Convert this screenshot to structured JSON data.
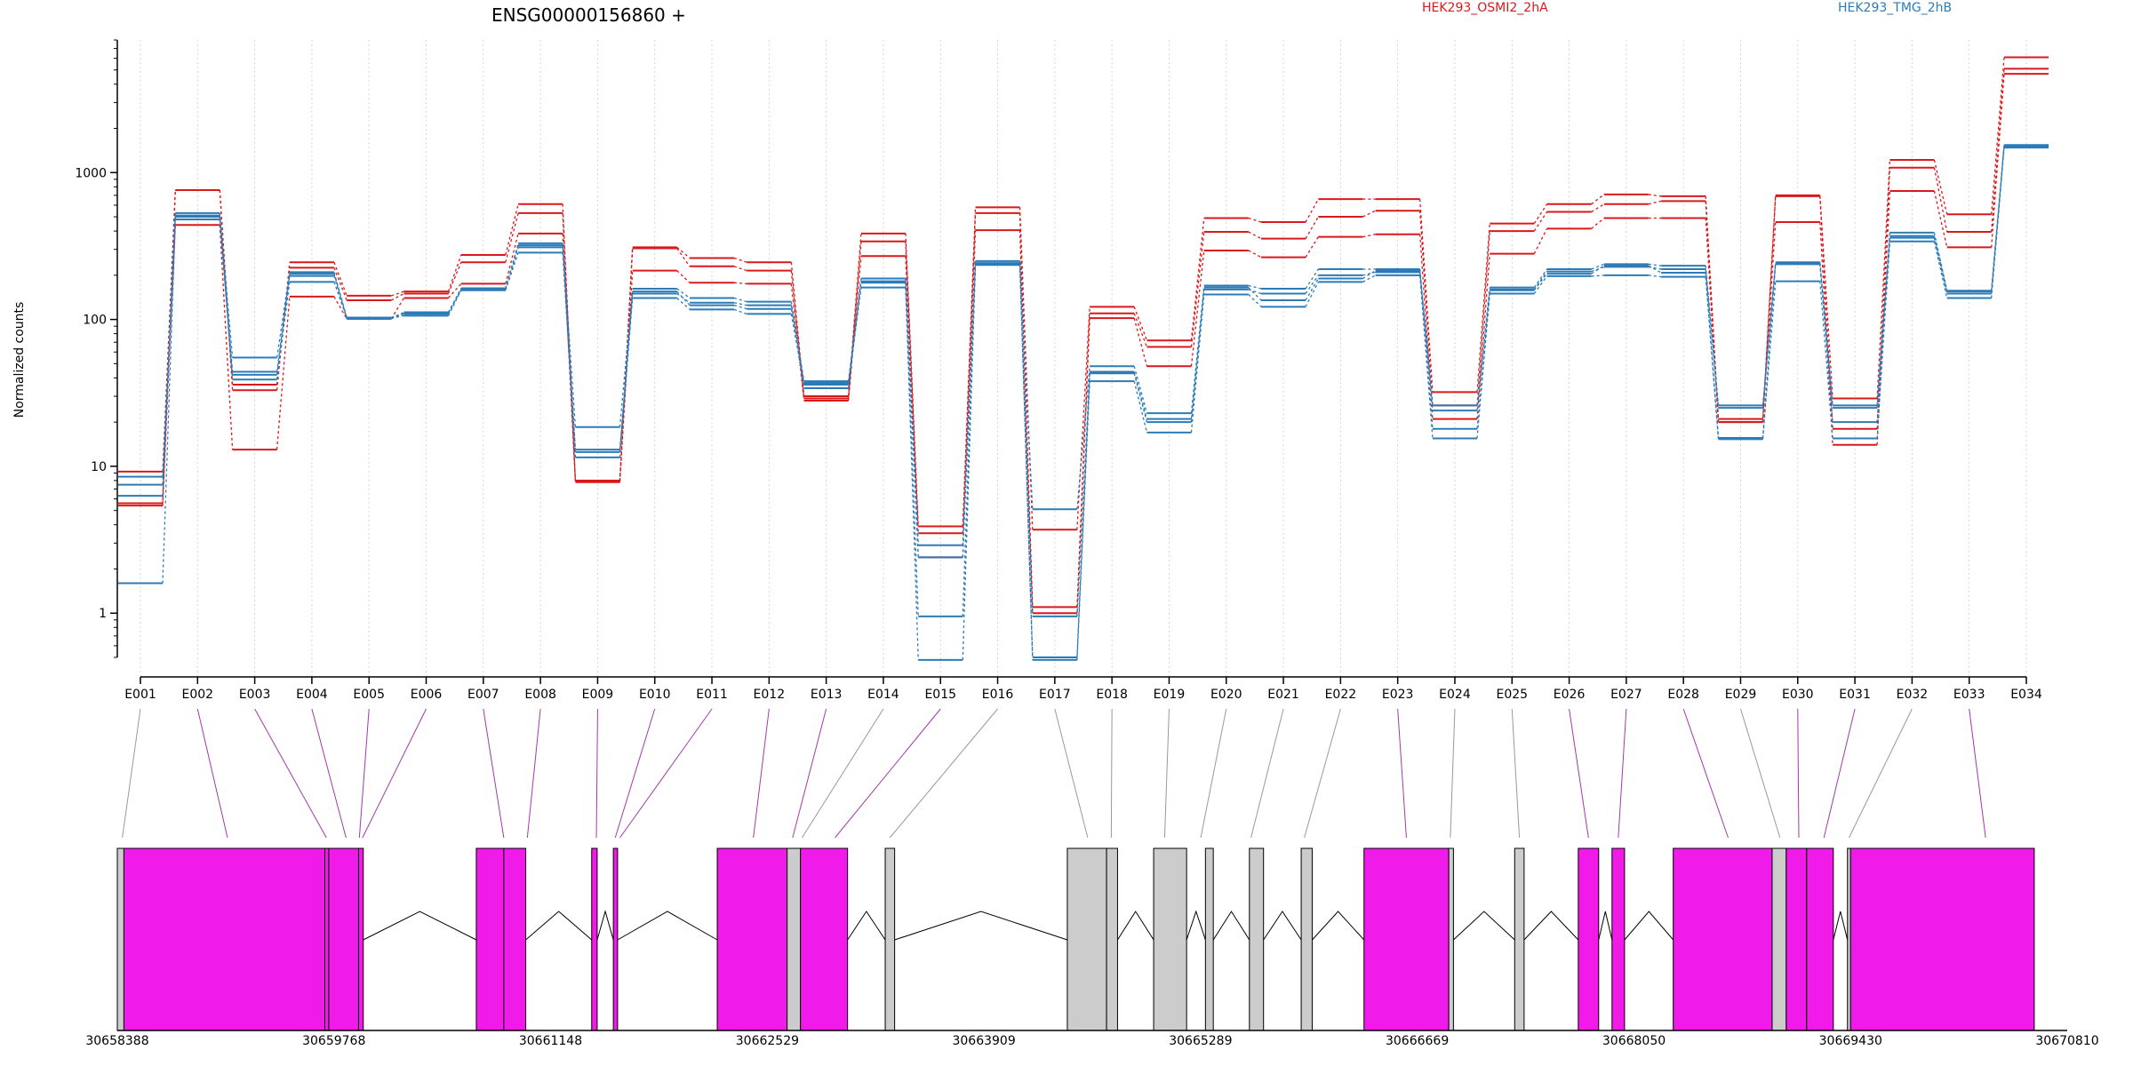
{
  "chart_data": {
    "type": "line",
    "title": "ENSG00000156860 +",
    "ylabel": "Normalized counts",
    "y_scale": "log",
    "ylim": [
      0.5,
      8000
    ],
    "y_ticks": [
      1,
      10,
      100,
      1000
    ],
    "y_tick_labels": [
      "1",
      "10",
      "100",
      "1000"
    ],
    "grid": "vertical dotted",
    "categories": [
      "E001",
      "E002",
      "E003",
      "E004",
      "E005",
      "E006",
      "E007",
      "E008",
      "E009",
      "E010",
      "E011",
      "E012",
      "E013",
      "E014",
      "E015",
      "E016",
      "E017",
      "E018",
      "E019",
      "E020",
      "E021",
      "E022",
      "E023",
      "E024",
      "E025",
      "E026",
      "E027",
      "E028",
      "E029",
      "E030",
      "E031",
      "E032",
      "E033",
      "E034"
    ],
    "legend": [
      {
        "label": "HEK293_OSMI2_2hA",
        "color": "#d7191c"
      },
      {
        "label": "HEK293_TMG_2hB",
        "color": "#2c7bb6"
      }
    ],
    "series": [
      {
        "group": 0,
        "values": [
          9.2,
          760,
          33,
          245,
          145,
          155,
          275,
          610,
          7.9,
          310,
          262,
          245,
          30,
          385,
          3.9,
          580,
          3.7,
          122,
          72,
          490,
          460,
          660,
          660,
          32,
          450,
          610,
          710,
          690,
          21,
          700,
          29,
          1220,
          520,
          6100
        ]
      },
      {
        "group": 0,
        "values": [
          5.6,
          760,
          36,
          225,
          135,
          150,
          245,
          530,
          8.0,
          305,
          230,
          215,
          29,
          340,
          3.5,
          530,
          1.1,
          110,
          65,
          395,
          355,
          500,
          550,
          26,
          400,
          540,
          610,
          640,
          20,
          690,
          18,
          1080,
          395,
          5100
        ]
      },
      {
        "group": 0,
        "values": [
          5.4,
          440,
          13,
          143,
          101,
          140,
          175,
          385,
          7.8,
          215,
          178,
          175,
          28,
          270,
          2.4,
          405,
          1.0,
          102,
          48,
          295,
          265,
          365,
          380,
          21,
          280,
          415,
          490,
          490,
          20,
          460,
          14,
          750,
          310,
          4700
        ]
      },
      {
        "group": 1,
        "values": [
          8.5,
          530,
          55,
          210,
          102,
          112,
          162,
          330,
          18.5,
          162,
          140,
          132,
          38,
          190,
          2.9,
          250,
          5.1,
          48,
          23,
          170,
          162,
          220,
          220,
          26,
          165,
          220,
          238,
          232,
          26,
          245,
          26,
          390,
          157,
          1540
        ]
      },
      {
        "group": 1,
        "values": [
          6.3,
          500,
          42,
          198,
          101,
          109,
          159,
          310,
          13,
          150,
          130,
          125,
          37,
          178,
          2.4,
          238,
          0.95,
          43,
          20,
          160,
          150,
          200,
          210,
          24,
          160,
          212,
          228,
          220,
          25,
          240,
          20,
          370,
          155,
          1520
        ]
      },
      {
        "group": 1,
        "values": [
          1.6,
          480,
          39,
          180,
          102,
          106,
          158,
          285,
          11.5,
          140,
          117,
          109,
          36,
          165,
          0.95,
          235,
          0.48,
          38,
          17,
          148,
          122,
          180,
          200,
          15.5,
          150,
          197,
          200,
          195,
          15.3,
          182,
          15.5,
          340,
          140,
          1480
        ]
      },
      {
        "group": 1,
        "values": [
          7.5,
          510,
          44,
          205,
          103,
          110,
          163,
          320,
          12.5,
          155,
          125,
          118,
          34,
          182,
          0.48,
          242,
          0.5,
          44,
          21,
          165,
          135,
          190,
          215,
          18,
          158,
          205,
          232,
          208,
          15.6,
          238,
          25,
          360,
          150,
          1500
        ]
      }
    ],
    "gene_model": {
      "coord_range": [
        30658388,
        30670810
      ],
      "coord_ticks": [
        30658388,
        30659768,
        30661148,
        30662529,
        30663909,
        30665289,
        30666669,
        30668050,
        30669430,
        30670810
      ],
      "coord_tick_labels": [
        "30658388",
        "30659768",
        "30661148",
        "30662529",
        "30663909",
        "30665289",
        "30666669",
        "30668050",
        "30669430",
        "30670810"
      ],
      "exons": [
        [
          30658388,
          30658430,
          "grey"
        ],
        [
          30658430,
          30659710,
          "magenta"
        ],
        [
          30659710,
          30659735,
          "magenta"
        ],
        [
          30659735,
          30659925,
          "magenta"
        ],
        [
          30659925,
          30659955,
          "magenta"
        ],
        [
          30660675,
          30660850,
          "magenta"
        ],
        [
          30660850,
          30660990,
          "magenta"
        ],
        [
          30661410,
          30661445,
          "magenta"
        ],
        [
          30661548,
          30661575,
          "magenta"
        ],
        [
          30662210,
          30662655,
          "magenta"
        ],
        [
          30662655,
          30662740,
          "grey"
        ],
        [
          30662740,
          30663040,
          "magenta"
        ],
        [
          30663280,
          30663340,
          "grey"
        ],
        [
          30664440,
          30664690,
          "grey"
        ],
        [
          30664690,
          30664760,
          "grey"
        ],
        [
          30664990,
          30665200,
          "grey"
        ],
        [
          30665320,
          30665370,
          "grey"
        ],
        [
          30665600,
          30665690,
          "grey"
        ],
        [
          30665930,
          30666000,
          "grey"
        ],
        [
          30666330,
          30666870,
          "magenta"
        ],
        [
          30666870,
          30666900,
          "grey"
        ],
        [
          30667290,
          30667350,
          "grey"
        ],
        [
          30667695,
          30667825,
          "magenta"
        ],
        [
          30667910,
          30667990,
          "magenta"
        ],
        [
          30668300,
          30668930,
          "magenta"
        ],
        [
          30668930,
          30669020,
          "grey"
        ],
        [
          30669020,
          30669150,
          "magenta"
        ],
        [
          30669150,
          30669320,
          "magenta"
        ],
        [
          30669410,
          30669430,
          "grey"
        ],
        [
          30669430,
          30670600,
          "magenta"
        ]
      ],
      "exon_links": [
        [
          30658420,
          "grey"
        ],
        [
          30659090,
          "magenta"
        ],
        [
          30659720,
          "magenta"
        ],
        [
          30659845,
          "magenta"
        ],
        [
          30659930,
          "magenta"
        ],
        [
          30659950,
          "magenta"
        ],
        [
          30660850,
          "magenta"
        ],
        [
          30661000,
          "magenta"
        ],
        [
          30661440,
          "magenta"
        ],
        [
          30661560,
          "magenta"
        ],
        [
          30661590,
          "magenta"
        ],
        [
          30662440,
          "magenta"
        ],
        [
          30662690,
          "magenta"
        ],
        [
          30662750,
          "grey"
        ],
        [
          30662960,
          "magenta"
        ],
        [
          30663310,
          "grey"
        ],
        [
          30664570,
          "grey"
        ],
        [
          30664720,
          "grey"
        ],
        [
          30665060,
          "grey"
        ],
        [
          30665290,
          "grey"
        ],
        [
          30665610,
          "grey"
        ],
        [
          30665950,
          "grey"
        ],
        [
          30666600,
          "magenta"
        ],
        [
          30666880,
          "grey"
        ],
        [
          30667320,
          "grey"
        ],
        [
          30667760,
          "magenta"
        ],
        [
          30667950,
          "magenta"
        ],
        [
          30668650,
          "magenta"
        ],
        [
          30668980,
          "grey"
        ],
        [
          30669100,
          "magenta"
        ],
        [
          30669260,
          "magenta"
        ],
        [
          30669420,
          "grey"
        ],
        [
          30670290,
          "magenta"
        ]
      ]
    }
  }
}
